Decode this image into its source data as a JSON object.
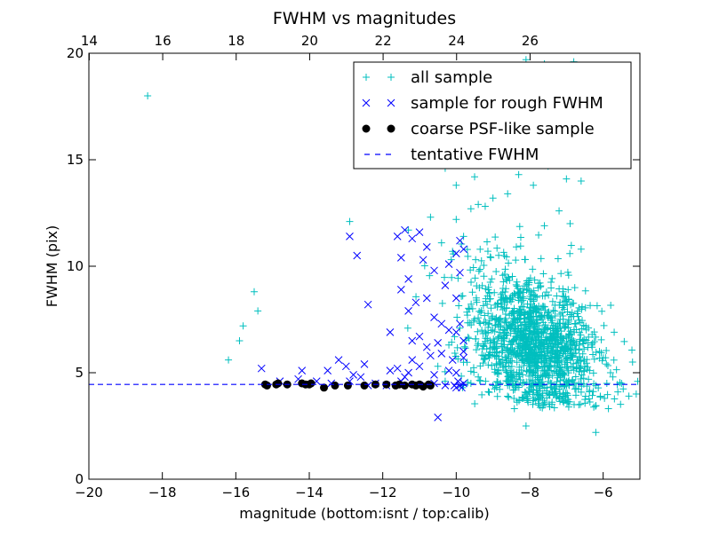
{
  "chart_data": {
    "type": "scatter",
    "title": "FWHM vs magnitudes",
    "xlabel": "magnitude (bottom:isnt / top:calib)",
    "ylabel": "FWHM (pix)",
    "xlim": [
      -20,
      -5
    ],
    "ylim": [
      0,
      20
    ],
    "xticks": [
      -20,
      -18,
      -16,
      -14,
      -12,
      -10,
      -8,
      -6
    ],
    "xtick_labels": [
      "−20",
      "−18",
      "−16",
      "−14",
      "−12",
      "−10",
      "−8",
      "−6"
    ],
    "yticks": [
      0,
      5,
      10,
      15,
      20
    ],
    "ytick_labels": [
      "0",
      "5",
      "10",
      "15",
      "20"
    ],
    "top_xticks": [
      14,
      16,
      18,
      20,
      22,
      24,
      26
    ],
    "top_xtick_labels": [
      "14",
      "16",
      "18",
      "20",
      "22",
      "24",
      "26"
    ],
    "top_axis_offset": 33.99,
    "grid": false,
    "legend_position": "top-right",
    "series": [
      {
        "name": "all sample",
        "marker": "plus",
        "color": "#00bfbf",
        "generated_cloud": {
          "count": 1400,
          "x_center": -7.9,
          "x_spread": 0.85,
          "y_center": 6.4,
          "y_spread": 1.6,
          "y_min": 3.3
        },
        "points": [
          [
            -18.4,
            18.0
          ],
          [
            -15.8,
            7.2
          ],
          [
            -15.9,
            6.5
          ],
          [
            -15.5,
            8.8
          ],
          [
            -15.4,
            7.9
          ],
          [
            -16.2,
            5.6
          ],
          [
            -12.9,
            12.1
          ],
          [
            -11.3,
            11.7
          ],
          [
            -10.0,
            12.2
          ],
          [
            -9.6,
            12.7
          ],
          [
            -9.4,
            12.9
          ],
          [
            -9.0,
            13.2
          ],
          [
            -8.6,
            13.4
          ],
          [
            -10.3,
            14.6
          ],
          [
            -10.0,
            13.8
          ],
          [
            -9.8,
            15.2
          ],
          [
            -9.5,
            14.2
          ],
          [
            -9.2,
            15.9
          ],
          [
            -9.0,
            16.5
          ],
          [
            -8.7,
            15.0
          ],
          [
            -8.5,
            16.3
          ],
          [
            -8.2,
            17.1
          ],
          [
            -8.0,
            16.0
          ],
          [
            -7.8,
            15.4
          ],
          [
            -7.5,
            14.7
          ],
          [
            -7.3,
            15.9
          ],
          [
            -7.0,
            14.1
          ],
          [
            -6.6,
            14.0
          ],
          [
            -7.9,
            13.8
          ],
          [
            -8.3,
            14.3
          ],
          [
            -9.1,
            17.8
          ],
          [
            -8.8,
            18.3
          ],
          [
            -8.4,
            18.9
          ],
          [
            -7.9,
            19.2
          ],
          [
            -8.1,
            19.7
          ],
          [
            -7.6,
            19.5
          ],
          [
            -6.8,
            19.6
          ],
          [
            -9.4,
            17.3
          ],
          [
            -8.9,
            16.8
          ],
          [
            -7.0,
            15.0
          ],
          [
            -10.7,
            12.3
          ],
          [
            -10.4,
            11.1
          ],
          [
            -9.8,
            11.4
          ],
          [
            -10.1,
            10.7
          ],
          [
            -7.2,
            12.6
          ],
          [
            -7.6,
            11.9
          ],
          [
            -6.9,
            12.0
          ],
          [
            -6.6,
            10.8
          ],
          [
            -8.1,
            2.5
          ],
          [
            -6.2,
            2.2
          ],
          [
            -5.6,
            4.1
          ],
          [
            -5.2,
            5.5
          ],
          [
            -5.1,
            4.0
          ],
          [
            -5.5,
            4.5
          ],
          [
            -5.3,
            3.9
          ],
          [
            -5.8,
            5.0
          ],
          [
            -6.0,
            5.7
          ],
          [
            -6.1,
            6.0
          ],
          [
            -6.3,
            6.2
          ],
          [
            -6.5,
            5.3
          ],
          [
            -5.7,
            6.9
          ],
          [
            -6.4,
            7.1
          ],
          [
            -10.2,
            6.3
          ],
          [
            -10.5,
            5.3
          ],
          [
            -10.3,
            4.6
          ],
          [
            -9.8,
            4.4
          ],
          [
            -9.6,
            4.5
          ],
          [
            -9.4,
            4.8
          ],
          [
            -9.2,
            4.6
          ],
          [
            -9.0,
            4.4
          ],
          [
            -8.8,
            4.5
          ],
          [
            -8.6,
            4.4
          ],
          [
            -8.4,
            4.6
          ],
          [
            -8.2,
            4.5
          ],
          [
            -7.8,
            4.4
          ],
          [
            -7.4,
            4.5
          ],
          [
            -7.0,
            4.6
          ],
          [
            -6.6,
            4.5
          ],
          [
            -6.2,
            4.4
          ],
          [
            -5.9,
            4.5
          ]
        ]
      },
      {
        "name": "sample for rough FWHM",
        "marker": "x",
        "color": "#0000ff",
        "points": [
          [
            -12.9,
            11.4
          ],
          [
            -12.7,
            10.5
          ],
          [
            -11.6,
            11.4
          ],
          [
            -11.4,
            11.7
          ],
          [
            -11.0,
            11.6
          ],
          [
            -11.2,
            11.3
          ],
          [
            -10.8,
            10.9
          ],
          [
            -10.6,
            9.8
          ],
          [
            -10.2,
            10.1
          ],
          [
            -10.0,
            10.6
          ],
          [
            -9.8,
            10.8
          ],
          [
            -9.9,
            11.2
          ],
          [
            -10.9,
            10.3
          ],
          [
            -11.5,
            10.4
          ],
          [
            -11.3,
            9.4
          ],
          [
            -11.1,
            8.3
          ],
          [
            -11.3,
            7.9
          ],
          [
            -11.5,
            8.9
          ],
          [
            -10.6,
            7.6
          ],
          [
            -10.4,
            7.3
          ],
          [
            -10.8,
            8.5
          ],
          [
            -10.0,
            8.5
          ],
          [
            -10.3,
            9.1
          ],
          [
            -9.9,
            9.7
          ],
          [
            -12.4,
            8.2
          ],
          [
            -11.8,
            6.9
          ],
          [
            -11.2,
            6.5
          ],
          [
            -11.0,
            6.7
          ],
          [
            -10.8,
            6.2
          ],
          [
            -10.5,
            6.4
          ],
          [
            -10.2,
            7.0
          ],
          [
            -10.0,
            6.9
          ],
          [
            -9.9,
            7.3
          ],
          [
            -9.8,
            6.5
          ],
          [
            -11.2,
            5.6
          ],
          [
            -10.7,
            5.8
          ],
          [
            -10.4,
            5.9
          ],
          [
            -10.1,
            5.6
          ],
          [
            -9.8,
            5.7
          ],
          [
            -9.8,
            6.0
          ],
          [
            -14.2,
            5.1
          ],
          [
            -13.5,
            5.1
          ],
          [
            -13.2,
            5.6
          ],
          [
            -13.0,
            5.3
          ],
          [
            -12.8,
            4.9
          ],
          [
            -12.6,
            4.8
          ],
          [
            -12.5,
            5.4
          ],
          [
            -11.8,
            5.1
          ],
          [
            -11.6,
            5.2
          ],
          [
            -11.3,
            5.0
          ],
          [
            -11.0,
            5.3
          ],
          [
            -10.6,
            4.9
          ],
          [
            -10.2,
            5.1
          ],
          [
            -10.0,
            5.0
          ],
          [
            -15.3,
            5.2
          ],
          [
            -14.8,
            4.6
          ],
          [
            -14.3,
            4.7
          ],
          [
            -13.8,
            4.6
          ],
          [
            -13.4,
            4.5
          ],
          [
            -12.9,
            4.6
          ],
          [
            -12.4,
            4.4
          ],
          [
            -11.9,
            4.4
          ],
          [
            -11.5,
            4.6
          ],
          [
            -11.0,
            4.4
          ],
          [
            -10.6,
            4.5
          ],
          [
            -10.3,
            4.4
          ],
          [
            -10.0,
            4.3
          ],
          [
            -9.9,
            4.4
          ],
          [
            -9.8,
            4.5
          ],
          [
            -9.85,
            4.3
          ],
          [
            -9.95,
            4.6
          ],
          [
            -10.05,
            4.4
          ],
          [
            -10.5,
            2.9
          ],
          [
            -11.4,
            4.8
          ],
          [
            -12.2,
            4.5
          ]
        ]
      },
      {
        "name": "coarse PSF-like sample",
        "marker": "dot",
        "color": "#000000",
        "points": [
          [
            -15.2,
            4.45
          ],
          [
            -15.15,
            4.4
          ],
          [
            -14.9,
            4.45
          ],
          [
            -14.85,
            4.5
          ],
          [
            -14.6,
            4.45
          ],
          [
            -14.2,
            4.5
          ],
          [
            -14.1,
            4.45
          ],
          [
            -14.0,
            4.45
          ],
          [
            -13.95,
            4.5
          ],
          [
            -13.6,
            4.3
          ],
          [
            -13.3,
            4.4
          ],
          [
            -12.95,
            4.4
          ],
          [
            -12.5,
            4.4
          ],
          [
            -12.2,
            4.45
          ],
          [
            -11.9,
            4.45
          ],
          [
            -11.65,
            4.4
          ],
          [
            -11.55,
            4.45
          ],
          [
            -11.4,
            4.4
          ],
          [
            -11.2,
            4.45
          ],
          [
            -11.1,
            4.4
          ],
          [
            -11.0,
            4.45
          ],
          [
            -10.9,
            4.35
          ],
          [
            -10.75,
            4.45
          ],
          [
            -10.7,
            4.4
          ]
        ]
      },
      {
        "name": "tentative FWHM",
        "marker": "dashed-line",
        "color": "#0000ff",
        "value": 4.45
      }
    ]
  }
}
